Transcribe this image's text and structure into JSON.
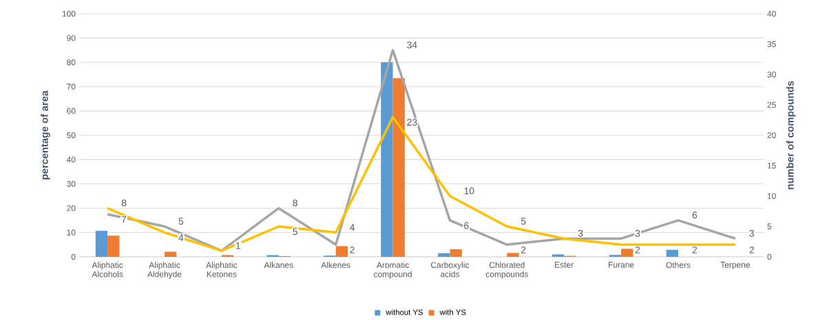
{
  "chart_data": {
    "type": "bar",
    "ylabel": "percentage of area",
    "y2label": "number of compounds",
    "categories": [
      "Aliphatic Alcohols",
      "Aliphatic Aldehyde",
      "Aliphatic Ketones",
      "Alkanes",
      "Alkenes",
      "Aromatic compound",
      "Carboxylic acids",
      "Chlorated compounds",
      "Ester",
      "Furane",
      "Others",
      "Terpene"
    ],
    "series": [
      {
        "name": "without YS",
        "type": "bar",
        "color": "#5b9bd5",
        "values": [
          10.7,
          0,
          0,
          0.7,
          0.5,
          80,
          1.5,
          0,
          1.0,
          0.8,
          2.9,
          0
        ]
      },
      {
        "name": "with YS",
        "type": "bar",
        "color": "#ed7d31",
        "values": [
          8.7,
          2.1,
          0.7,
          0.3,
          4.4,
          73.5,
          3.1,
          1.6,
          0.4,
          3.3,
          0,
          0
        ]
      },
      {
        "type": "line",
        "axis": "y2",
        "color": "#a5a5a5",
        "values": [
          7,
          5,
          1,
          8,
          2,
          34,
          6,
          2,
          3,
          3,
          6,
          3
        ],
        "value_labels": [
          "7",
          "5",
          "1",
          "8",
          "2",
          "34",
          "6",
          "2",
          "3",
          "3",
          "6",
          "3"
        ]
      },
      {
        "type": "line",
        "axis": "y2",
        "color": "#ffc000",
        "values": [
          8,
          4,
          1,
          5,
          4,
          23,
          10,
          5,
          3,
          2,
          2,
          2
        ],
        "value_labels": [
          "8",
          "4",
          null,
          "5",
          "4",
          "23",
          "10",
          "5",
          null,
          "2",
          "2",
          "2"
        ]
      }
    ],
    "ylim": [
      0,
      100
    ],
    "yticks": [
      0,
      10,
      20,
      30,
      40,
      50,
      60,
      70,
      80,
      90,
      100
    ],
    "y2lim": [
      0,
      40
    ],
    "y2ticks": [
      0,
      5,
      10,
      15,
      20,
      25,
      30,
      35,
      40
    ],
    "grid": "y",
    "legend": "bottom",
    "marker": "none",
    "line_style": "solid"
  }
}
